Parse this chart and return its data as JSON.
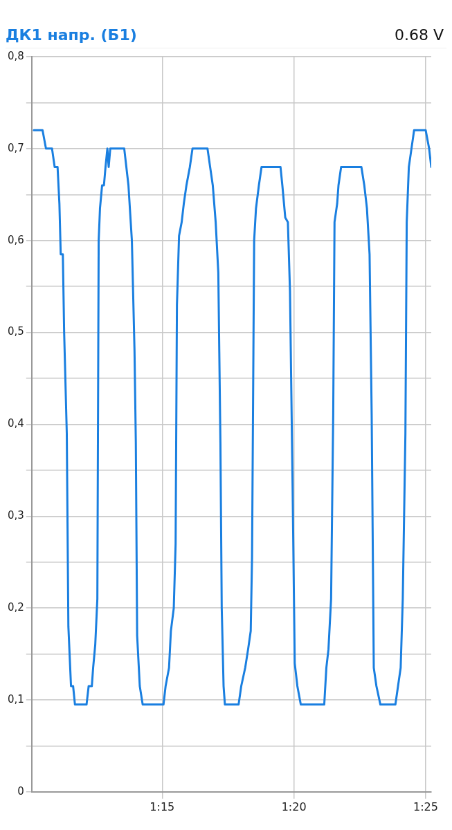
{
  "chart_data": {
    "type": "line",
    "title": "ДК1 напр. (Б1)",
    "subtitle": "0.68 V",
    "x": [
      70.13,
      70.46,
      70.59,
      70.82,
      70.92,
      71.03,
      71.1,
      71.15,
      71.23,
      71.28,
      71.38,
      71.44,
      71.54,
      71.62,
      71.69,
      72.13,
      72.21,
      72.33,
      72.38,
      72.46,
      72.54,
      72.59,
      72.64,
      72.72,
      72.79,
      72.85,
      72.92,
      72.97,
      73.03,
      73.56,
      73.64,
      73.72,
      73.85,
      73.95,
      74.0,
      74.05,
      74.15,
      74.26,
      75.05,
      75.13,
      75.26,
      75.33,
      75.44,
      75.51,
      75.56,
      75.64,
      75.74,
      75.82,
      75.92,
      76.05,
      76.15,
      76.72,
      76.82,
      76.92,
      77.03,
      77.13,
      77.21,
      77.26,
      77.33,
      77.38,
      77.9,
      78.0,
      78.15,
      78.26,
      78.36,
      78.41,
      78.49,
      78.56,
      78.67,
      78.77,
      79.49,
      79.56,
      79.67,
      79.77,
      79.85,
      79.95,
      80.03,
      80.13,
      80.26,
      81.15,
      81.23,
      81.31,
      81.41,
      81.49,
      81.54,
      81.64,
      81.69,
      81.79,
      82.56,
      82.67,
      82.77,
      82.87,
      82.95,
      83.03,
      83.13,
      83.28,
      83.85,
      83.95,
      84.05,
      84.13,
      84.23,
      84.28,
      84.36,
      84.46,
      84.56,
      85.0,
      85.13,
      85.21
    ],
    "series": [
      {
        "color": "#1a7fe0",
        "values": [
          0.72,
          0.72,
          0.7,
          0.7,
          0.68,
          0.68,
          0.64,
          0.585,
          0.585,
          0.5,
          0.39,
          0.18,
          0.115,
          0.115,
          0.095,
          0.095,
          0.115,
          0.115,
          0.135,
          0.16,
          0.21,
          0.6,
          0.635,
          0.66,
          0.66,
          0.68,
          0.7,
          0.68,
          0.7,
          0.7,
          0.68,
          0.66,
          0.6,
          0.48,
          0.38,
          0.17,
          0.115,
          0.095,
          0.095,
          0.115,
          0.135,
          0.175,
          0.2,
          0.27,
          0.53,
          0.605,
          0.62,
          0.64,
          0.66,
          0.68,
          0.7,
          0.7,
          0.68,
          0.66,
          0.62,
          0.565,
          0.38,
          0.2,
          0.115,
          0.095,
          0.095,
          0.115,
          0.135,
          0.155,
          0.175,
          0.255,
          0.6,
          0.635,
          0.66,
          0.68,
          0.68,
          0.66,
          0.625,
          0.62,
          0.545,
          0.33,
          0.14,
          0.115,
          0.095,
          0.095,
          0.135,
          0.155,
          0.21,
          0.41,
          0.62,
          0.64,
          0.66,
          0.68,
          0.68,
          0.66,
          0.635,
          0.585,
          0.41,
          0.135,
          0.115,
          0.095,
          0.095,
          0.115,
          0.135,
          0.21,
          0.39,
          0.62,
          0.68,
          0.7,
          0.72,
          0.72,
          0.7,
          0.68
        ]
      }
    ],
    "xlim": [
      70.05,
      85.21
    ],
    "xticks": [
      {
        "value": 75,
        "label": "1:15"
      },
      {
        "value": 80,
        "label": "1:20"
      },
      {
        "value": 85,
        "label": "1:25"
      }
    ],
    "ylim": [
      0,
      0.8
    ],
    "yticks": [
      0,
      {
        "value": 0.05,
        "label": null
      },
      {
        "value": 0.1,
        "label": "0,1"
      },
      {
        "value": 0.15,
        "label": null
      },
      {
        "value": 0.2,
        "label": "0,2"
      },
      {
        "value": 0.25,
        "label": null
      },
      {
        "value": 0.3,
        "label": "0,3"
      },
      {
        "value": 0.35,
        "label": null
      },
      {
        "value": 0.4,
        "label": "0,4"
      },
      {
        "value": 0.45,
        "label": null
      },
      {
        "value": 0.5,
        "label": "0,5"
      },
      {
        "value": 0.55,
        "label": null
      },
      {
        "value": 0.6,
        "label": "0,6"
      },
      {
        "value": 0.65,
        "label": null
      },
      {
        "value": 0.7,
        "label": "0,7"
      },
      {
        "value": 0.75,
        "label": null
      },
      {
        "value": 0.8,
        "label": "0,8"
      }
    ],
    "grid": true,
    "legend": false,
    "marker": "none",
    "line_style": "solid"
  }
}
